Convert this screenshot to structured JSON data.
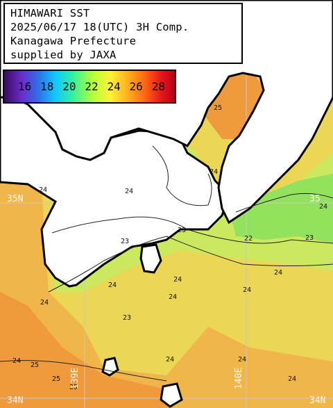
{
  "title_lines": [
    "HIMAWARI SST",
    "2025/06/17 18(UTC) 3H Comp.",
    "Kanagawa Prefecture",
    "supplied by JAXA"
  ],
  "colorbar": {
    "labels": [
      "16",
      "18",
      "20",
      "22",
      "24",
      "26",
      "28"
    ]
  },
  "grid_labels": {
    "lat_35n_left": "35N",
    "lat_35n_right": "35",
    "lat_34n_left": "34N",
    "lat_34n_right": "34N",
    "lon_139e": "139E",
    "lon_140e": "140E"
  },
  "contour_labels": [
    "25",
    "24",
    "23",
    "23",
    "22",
    "24",
    "24",
    "24",
    "24",
    "24",
    "25",
    "25",
    "24",
    "24",
    "23",
    "24",
    "24",
    "24",
    "24",
    "23",
    "24",
    "25",
    "24"
  ],
  "colors": {
    "sst_22": "#8fe35a",
    "sst_23": "#cbec5c",
    "sst_24": "#f0d14e",
    "sst_25": "#f2a944",
    "sst_26": "#ef8c35",
    "land": "#ffffff",
    "coast": "#000000",
    "grid": "#c8c8c8"
  }
}
